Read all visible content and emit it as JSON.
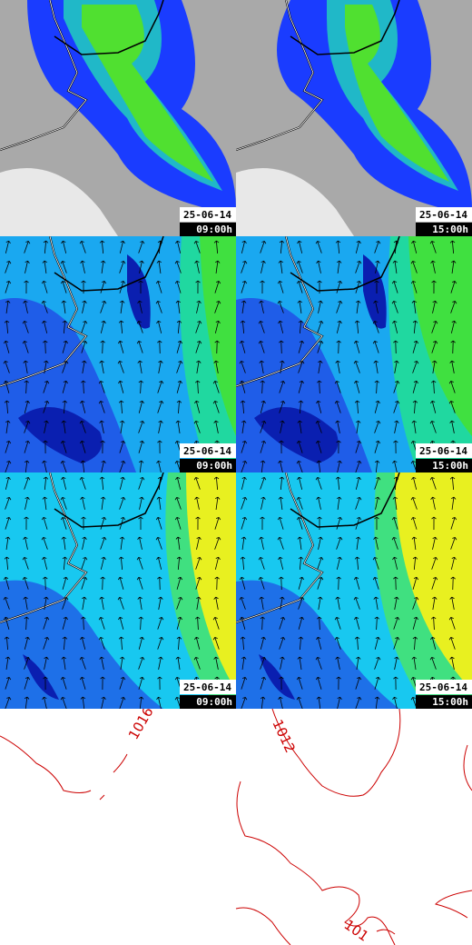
{
  "panels": [
    {
      "date": "25-06-14",
      "time": "09:00h"
    },
    {
      "date": "25-06-14",
      "time": "15:00h"
    },
    {
      "date": "25-06-14",
      "time": "09:00h"
    },
    {
      "date": "25-06-14",
      "time": "15:00h"
    },
    {
      "date": "25-06-14",
      "time": "09:00h"
    },
    {
      "date": "25-06-14",
      "time": "15:00h"
    }
  ],
  "isobars": [
    {
      "label": "1016"
    },
    {
      "label": "1012"
    },
    {
      "label": "101"
    }
  ]
}
